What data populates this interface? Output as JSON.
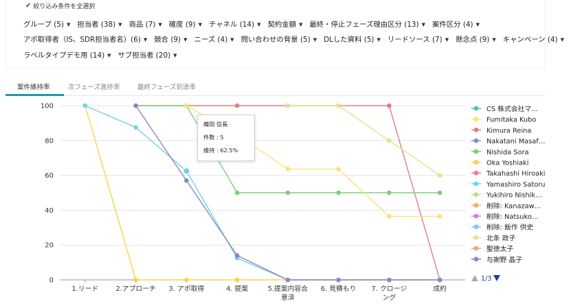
{
  "filters": {
    "select_all_label": "絞り込み条件を全選択",
    "rows": [
      [
        "グループ (5)",
        "担当者 (38)",
        "商品 (7)",
        "確度 (9)",
        "チャネル (14)",
        "契約金額",
        "最終・停止フェーズ理由区分 (13)",
        "案件区分 (4)"
      ],
      [
        "アポ取得者（IS、SDR担当者名）(6)",
        "競合 (9)",
        "ニーズ (4)",
        "問い合わせの背景 (5)",
        "DLした資料 (5)",
        "リードソース (7)",
        "懸念点 (9)",
        "キャンペーン (4)"
      ],
      [
        "ラベルタイプデモ用 (14)",
        "サブ担当者 (20)"
      ]
    ]
  },
  "tabs": [
    "案件維持率",
    "次フェーズ進捗率",
    "最終フェーズ到達率"
  ],
  "active_tab": 0,
  "tooltip": {
    "name": "織田 信長",
    "count_label": "件数 : 5",
    "retention_label": "維持 : 62.5%"
  },
  "legend": {
    "page_label": "1/3"
  },
  "chart_data": {
    "type": "line",
    "categories": [
      "1.リード",
      "2.アプローチ",
      "3. アポ取得",
      "4. 提案",
      "5.提案内容合意済",
      "6. 見積もり",
      "7. クロージング",
      "成約"
    ],
    "ylim": [
      0,
      100
    ],
    "yticks": [
      0,
      20,
      40,
      60,
      80,
      100
    ],
    "grid": true,
    "legend_position": "right",
    "series": [
      {
        "name": "CS 株式会社マ…",
        "color": "#5cbcbc",
        "values": [
          null,
          null,
          null,
          null,
          null,
          null,
          null,
          null
        ]
      },
      {
        "name": "Fumitaka Kubo",
        "color": "#f8e473",
        "values": [
          null,
          null,
          null,
          null,
          null,
          null,
          null,
          null
        ]
      },
      {
        "name": "Kimura Reina",
        "color": "#e97b7b",
        "values": [
          null,
          100,
          100,
          100,
          100,
          100,
          100,
          0
        ]
      },
      {
        "name": "Nakatani Masaf…",
        "color": "#7f8fd0",
        "values": [
          null,
          null,
          null,
          null,
          null,
          null,
          null,
          null
        ]
      },
      {
        "name": "Nishida Sora",
        "color": "#7ccf7c",
        "values": [
          null,
          100,
          100,
          50,
          50,
          50,
          50,
          50
        ]
      },
      {
        "name": "Oka Yoshiaki",
        "color": "#f5d54a",
        "values": [
          100,
          0,
          0,
          0,
          0,
          0,
          0,
          0
        ]
      },
      {
        "name": "Takahashi Hiroaki",
        "color": "#f07aa0",
        "values": [
          null,
          null,
          null,
          null,
          null,
          null,
          null,
          null
        ]
      },
      {
        "name": "Yamashiro Satoru",
        "color": "#6fd3e6",
        "values": [
          100,
          87.5,
          62.5,
          12.5,
          0,
          0,
          0,
          0
        ]
      },
      {
        "name": "Yukihiro Nishik…",
        "color": "#b8dd8a",
        "values": [
          null,
          null,
          null,
          null,
          null,
          null,
          null,
          null
        ]
      },
      {
        "name": "削除: Kanazaw…",
        "color": "#f5b06a",
        "values": [
          null,
          null,
          null,
          null,
          null,
          null,
          null,
          null
        ]
      },
      {
        "name": "削除: Natsuko…",
        "color": "#c78ad9",
        "values": [
          null,
          null,
          null,
          null,
          null,
          null,
          null,
          null
        ]
      },
      {
        "name": "削除: 飯作 供史",
        "color": "#7ecbea",
        "values": [
          null,
          null,
          null,
          null,
          null,
          null,
          null,
          null
        ]
      },
      {
        "name": "北条 政子",
        "color": "#dde68a",
        "values": [
          null,
          null,
          null,
          null,
          100,
          100,
          80,
          60
        ]
      },
      {
        "name": "聖徳太子",
        "color": "#f2a08a",
        "values": [
          null,
          null,
          null,
          null,
          null,
          null,
          null,
          null
        ]
      },
      {
        "name": "与謝野 晶子",
        "color": "#8a86c8",
        "values": [
          null,
          100,
          57,
          14,
          0,
          0,
          0,
          0
        ]
      },
      {
        "name": "",
        "color": "#fae27a",
        "values": [
          null,
          null,
          100,
          83.3,
          63.6,
          63.6,
          36.4,
          36.4
        ]
      }
    ]
  }
}
